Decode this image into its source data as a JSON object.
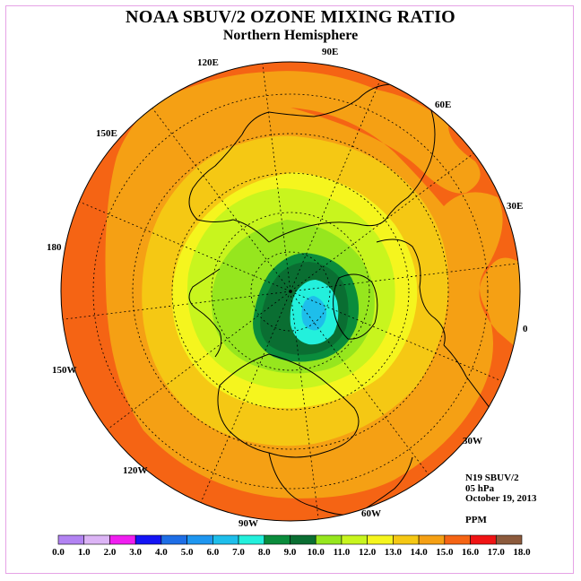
{
  "header": {
    "title": "NOAA SBUV/2 OZONE MIXING RATIO",
    "subtitle": "Northern Hemisphere"
  },
  "map": {
    "projection": "north polar stereographic",
    "longitude_labels": [
      "0",
      "30E",
      "60E",
      "90E",
      "120E",
      "150E",
      "180",
      "150W",
      "120W",
      "90W",
      "60W",
      "30W"
    ]
  },
  "info": {
    "instrument": "N19 SBUV/2",
    "level": "05 hPa",
    "date": "October 19, 2013",
    "units": "PPM"
  },
  "colorbar": {
    "ticks": [
      "0.0",
      "1.0",
      "2.0",
      "3.0",
      "4.0",
      "5.0",
      "6.0",
      "7.0",
      "8.0",
      "9.0",
      "10.0",
      "11.0",
      "12.0",
      "13.0",
      "14.0",
      "15.0",
      "16.0",
      "17.0",
      "18.0"
    ],
    "colors": [
      "#b283f2",
      "#dcb4f5",
      "#f01ef0",
      "#1414f5",
      "#1e6ee6",
      "#1e96f0",
      "#1ebeeb",
      "#23f0dc",
      "#0a8c3c",
      "#0a6e32",
      "#96e61e",
      "#c8f51e",
      "#f5f51e",
      "#f5c814",
      "#f5a014",
      "#f56414",
      "#f01414",
      "#8c5a3c"
    ]
  }
}
